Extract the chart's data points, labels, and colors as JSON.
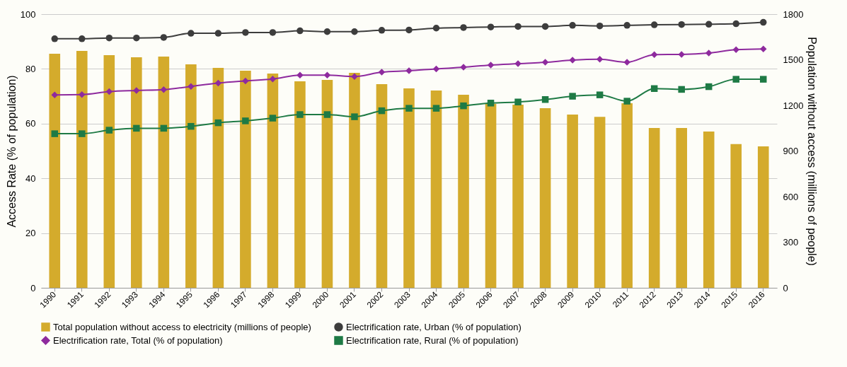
{
  "chart_data": {
    "type": "line",
    "categories": [
      "1990",
      "1991",
      "1992",
      "1993",
      "1994",
      "1995",
      "1996",
      "1997",
      "1998",
      "1999",
      "2000",
      "2001",
      "2002",
      "2003",
      "2004",
      "2005",
      "2006",
      "2007",
      "2008",
      "2009",
      "2010",
      "2011",
      "2012",
      "2013",
      "2014",
      "2015",
      "2016"
    ],
    "ylabel": "Access Rate (% of population)",
    "y2label": "Population without access (millions of people)",
    "ylim": [
      0,
      100
    ],
    "yticks": [
      0,
      20,
      40,
      60,
      80,
      100
    ],
    "y2lim": [
      0,
      1800
    ],
    "y2ticks": [
      0,
      300,
      600,
      900,
      1200,
      1500,
      1800
    ],
    "grid": "y",
    "legend": "bottom",
    "series": [
      {
        "name": "Total population without access to electricity (millions of people)",
        "type": "bar",
        "axis": "y2",
        "color": "#d4ab2c",
        "values": [
          1540,
          1558,
          1530,
          1516,
          1521,
          1470,
          1447,
          1428,
          1409,
          1358,
          1368,
          1414,
          1340,
          1312,
          1298,
          1270,
          1209,
          1205,
          1181,
          1140,
          1125,
          1214,
          1051,
          1051,
          1028,
          945,
          930
        ]
      },
      {
        "name": "Electrification rate, Urban (% of population)",
        "marker": "circle",
        "color": "#3d3d3d",
        "values": [
          91,
          91,
          91.3,
          91.3,
          91.5,
          93,
          93,
          93.3,
          93.3,
          93.9,
          93.6,
          93.6,
          94.1,
          94.2,
          94.9,
          95.1,
          95.3,
          95.5,
          95.5,
          95.9,
          95.7,
          95.9,
          96.1,
          96.2,
          96.3,
          96.5,
          97
        ]
      },
      {
        "name": "Electrification rate, Total (% of population)",
        "marker": "diamond",
        "color": "#8e2a9e",
        "values": [
          70.5,
          70.6,
          71.7,
          72.1,
          72.4,
          73.6,
          74.8,
          75.6,
          76.3,
          77.7,
          77.7,
          77.2,
          78.8,
          79.3,
          80.0,
          80.6,
          81.4,
          81.9,
          82.4,
          83.2,
          83.5,
          82.4,
          85.2,
          85.3,
          85.8,
          87.0,
          87.3
        ]
      },
      {
        "name": "Electrification rate, Rural (% of population)",
        "marker": "square",
        "color": "#1e7a45",
        "values": [
          56.3,
          56.3,
          57.6,
          58.3,
          58.3,
          59,
          60.3,
          61,
          62,
          63.3,
          63.3,
          62.5,
          64.7,
          65.6,
          65.6,
          66.5,
          67.5,
          67.9,
          68.8,
          70,
          70.5,
          68.2,
          72.8,
          72.5,
          73.5,
          76.2,
          76.2
        ]
      }
    ]
  }
}
